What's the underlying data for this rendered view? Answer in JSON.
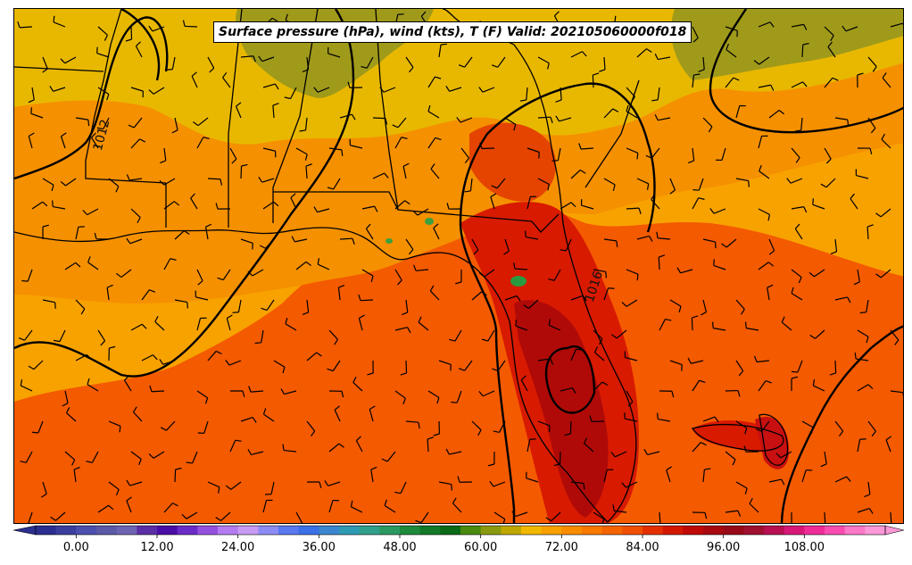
{
  "title": "Surface pressure (hPa), wind (kts), T (F) Valid: 202105060000f018",
  "colorbar": {
    "tick_labels": [
      "0.00",
      "12.00",
      "24.00",
      "36.00",
      "48.00",
      "60.00",
      "72.00",
      "84.00",
      "96.00",
      "108.00"
    ],
    "colors": [
      "#2b2f8f",
      "#3a3f9e",
      "#4b4fae",
      "#5b5aa8",
      "#6e64b4",
      "#5a2ea6",
      "#4a0ea6",
      "#6a2cc8",
      "#9650e0",
      "#b47cf0",
      "#c89af4",
      "#8d8cf4",
      "#5a78f0",
      "#3a70e8",
      "#3a86d0",
      "#2f9ab4",
      "#30a08a",
      "#2a9a60",
      "#1f8a3c",
      "#127a28",
      "#0a6a18",
      "#4a8a10",
      "#8a9a10",
      "#c0a800",
      "#f0b800",
      "#f8a000",
      "#fa8c00",
      "#f87800",
      "#f46400",
      "#f04e00",
      "#e43000",
      "#d41800",
      "#c00a08",
      "#a80a10",
      "#980a18",
      "#a01030",
      "#b81050",
      "#d81878",
      "#f02c98",
      "#f84cb0",
      "#fc78c8",
      "#fc98d8"
    ],
    "vmin": -6,
    "vmax": 120
  },
  "isobar_labels": [
    "1016",
    "1012"
  ],
  "colors": {
    "ocean_warm": "#f45a00",
    "land_orange": "#f8a200",
    "land_yellow": "#e8b800",
    "land_olive": "#a09a1a",
    "hot_red": "#d81a00",
    "hot_darkred": "#b00a08"
  }
}
